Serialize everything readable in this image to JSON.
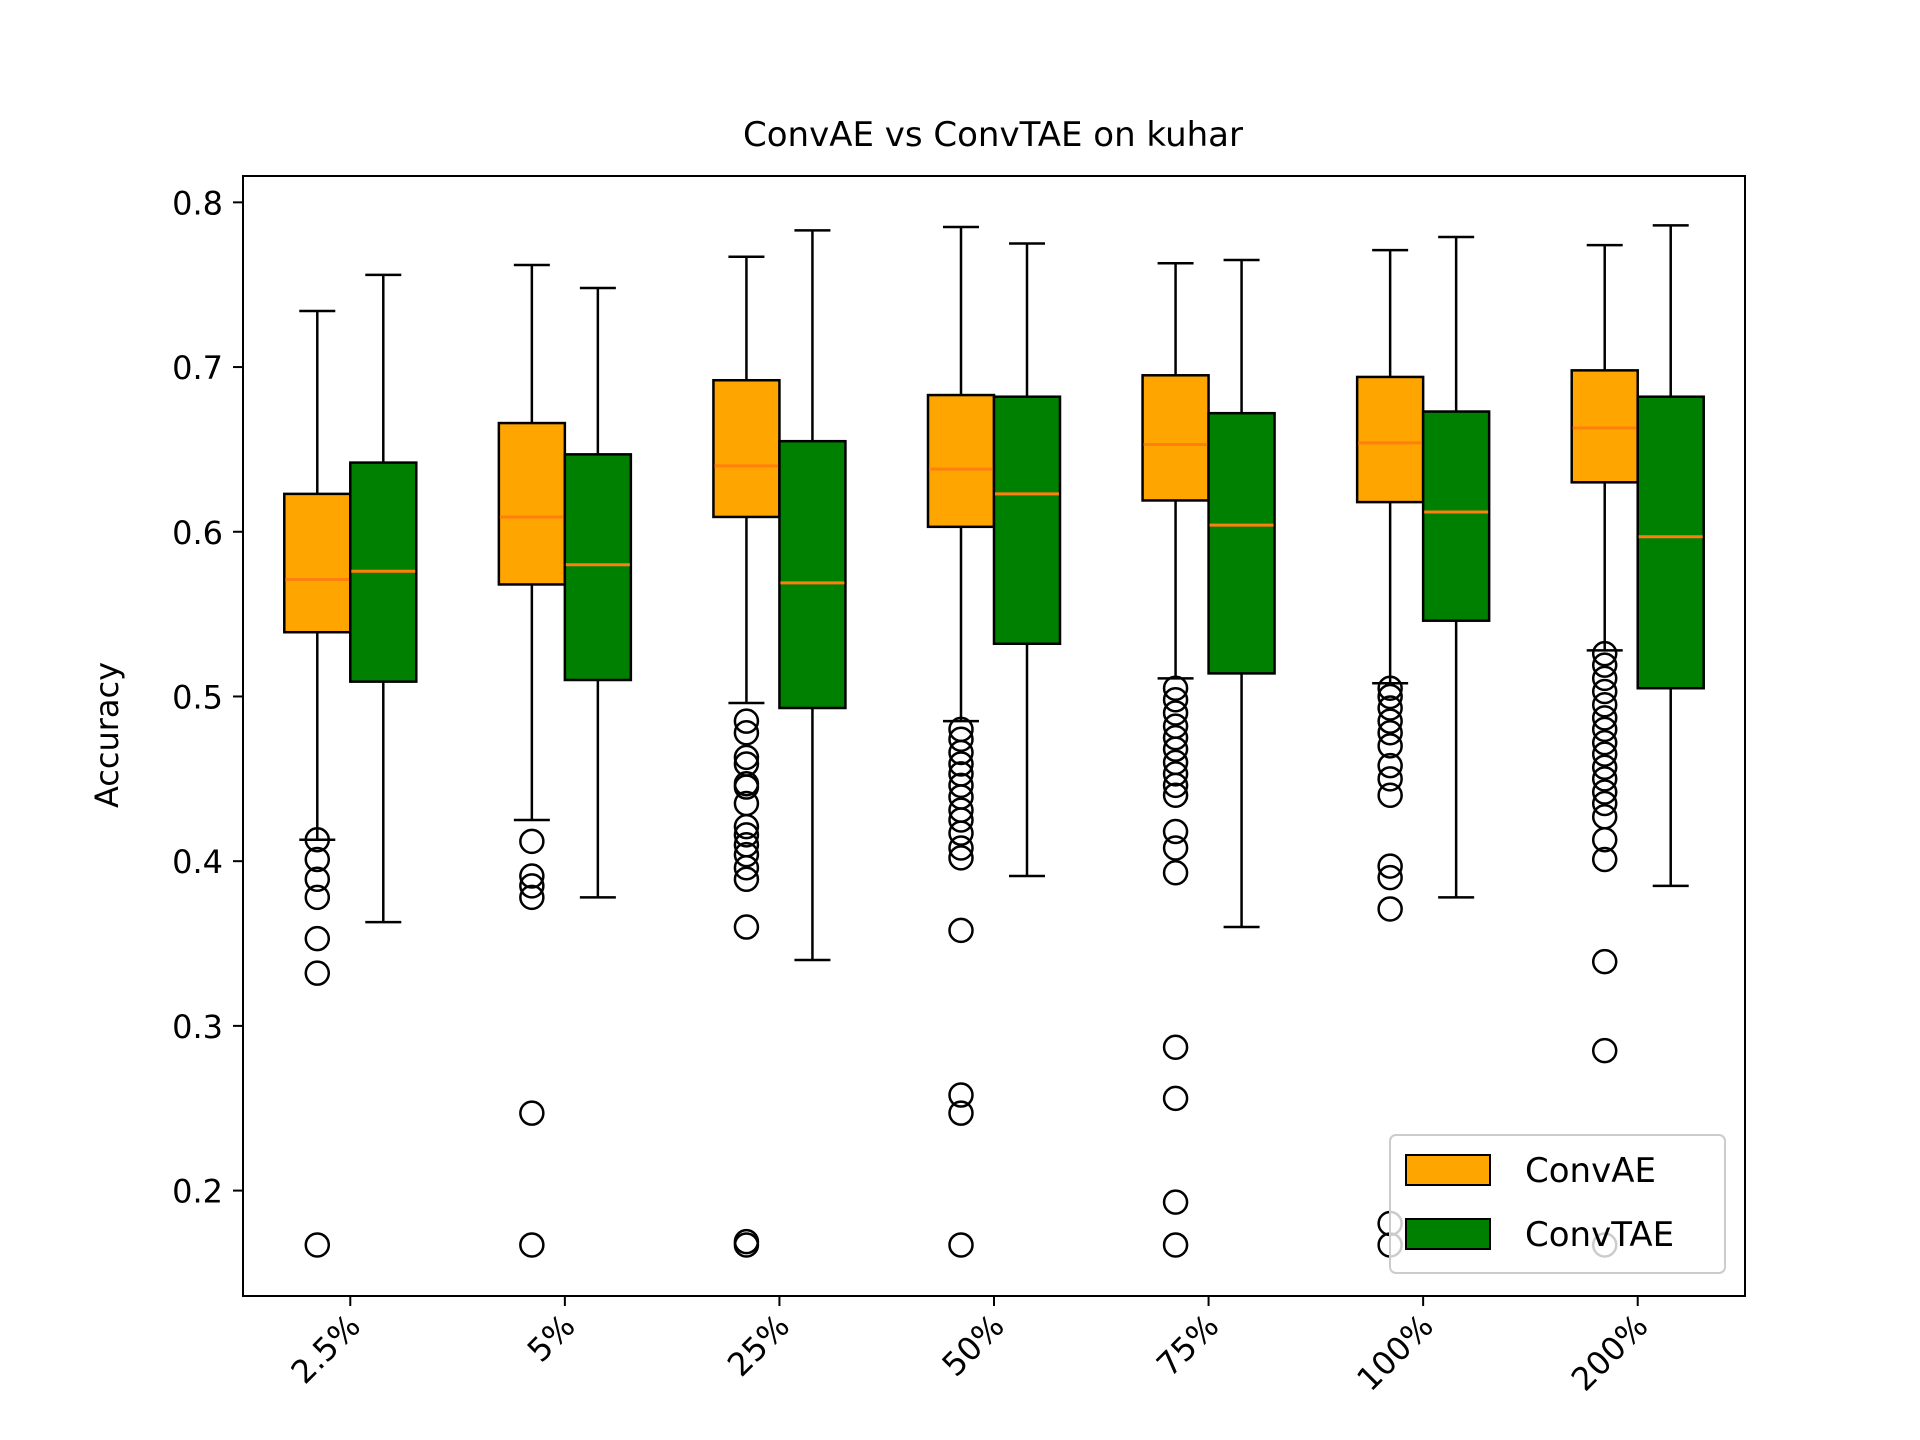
{
  "chart_data": {
    "type": "box",
    "title": "ConvAE vs ConvTAE on kuhar",
    "xlabel": "",
    "ylabel": "Accuracy",
    "ylim": [
      0.136,
      0.816
    ],
    "yticks": [
      0.2,
      0.3,
      0.4,
      0.5,
      0.6,
      0.7,
      0.8
    ],
    "ytick_labels": [
      "0.2",
      "0.3",
      "0.4",
      "0.5",
      "0.6",
      "0.7",
      "0.8"
    ],
    "categories": [
      "2.5%",
      "5%",
      "25%",
      "50%",
      "75%",
      "100%",
      "200%"
    ],
    "grid": false,
    "legend_position": "lower-right",
    "series": [
      {
        "name": "ConvAE",
        "color": "#ffa500",
        "median_color": "#ff7f0e",
        "boxes": [
          {
            "whislo": 0.413,
            "q1": 0.539,
            "med": 0.571,
            "q3": 0.623,
            "whishi": 0.734,
            "fliers": [
              0.413,
              0.401,
              0.389,
              0.378,
              0.353,
              0.332,
              0.167
            ]
          },
          {
            "whislo": 0.425,
            "q1": 0.568,
            "med": 0.609,
            "q3": 0.666,
            "whishi": 0.762,
            "fliers": [
              0.412,
              0.391,
              0.385,
              0.378,
              0.247,
              0.167
            ]
          },
          {
            "whislo": 0.496,
            "q1": 0.609,
            "med": 0.64,
            "q3": 0.692,
            "whishi": 0.767,
            "fliers": [
              0.485,
              0.478,
              0.463,
              0.459,
              0.447,
              0.445,
              0.435,
              0.421,
              0.416,
              0.41,
              0.404,
              0.396,
              0.389,
              0.36,
              0.169,
              0.167
            ]
          },
          {
            "whislo": 0.485,
            "q1": 0.603,
            "med": 0.638,
            "q3": 0.683,
            "whishi": 0.785,
            "fliers": [
              0.48,
              0.474,
              0.466,
              0.459,
              0.453,
              0.446,
              0.439,
              0.431,
              0.425,
              0.417,
              0.408,
              0.402,
              0.358,
              0.258,
              0.247,
              0.167
            ]
          },
          {
            "whislo": 0.511,
            "q1": 0.619,
            "med": 0.653,
            "q3": 0.695,
            "whishi": 0.763,
            "fliers": [
              0.505,
              0.498,
              0.49,
              0.482,
              0.475,
              0.468,
              0.46,
              0.453,
              0.446,
              0.44,
              0.418,
              0.408,
              0.393,
              0.287,
              0.256,
              0.193,
              0.167
            ]
          },
          {
            "whislo": 0.508,
            "q1": 0.618,
            "med": 0.654,
            "q3": 0.694,
            "whishi": 0.771,
            "fliers": [
              0.505,
              0.5,
              0.493,
              0.485,
              0.478,
              0.47,
              0.458,
              0.45,
              0.44,
              0.397,
              0.39,
              0.371,
              0.18,
              0.167
            ]
          },
          {
            "whislo": 0.528,
            "q1": 0.63,
            "med": 0.663,
            "q3": 0.698,
            "whishi": 0.774,
            "fliers": [
              0.526,
              0.519,
              0.511,
              0.503,
              0.495,
              0.487,
              0.48,
              0.472,
              0.465,
              0.457,
              0.45,
              0.442,
              0.435,
              0.427,
              0.413,
              0.401,
              0.339,
              0.285,
              0.167
            ]
          }
        ]
      },
      {
        "name": "ConvTAE",
        "color": "#008000",
        "median_color": "#ff7f0e",
        "boxes": [
          {
            "whislo": 0.363,
            "q1": 0.509,
            "med": 0.576,
            "q3": 0.642,
            "whishi": 0.756,
            "fliers": []
          },
          {
            "whislo": 0.378,
            "q1": 0.51,
            "med": 0.58,
            "q3": 0.647,
            "whishi": 0.748,
            "fliers": []
          },
          {
            "whislo": 0.34,
            "q1": 0.493,
            "med": 0.569,
            "q3": 0.655,
            "whishi": 0.783,
            "fliers": []
          },
          {
            "whislo": 0.391,
            "q1": 0.532,
            "med": 0.623,
            "q3": 0.682,
            "whishi": 0.775,
            "fliers": []
          },
          {
            "whislo": 0.36,
            "q1": 0.514,
            "med": 0.604,
            "q3": 0.672,
            "whishi": 0.765,
            "fliers": []
          },
          {
            "whislo": 0.378,
            "q1": 0.546,
            "med": 0.612,
            "q3": 0.673,
            "whishi": 0.779,
            "fliers": []
          },
          {
            "whislo": 0.385,
            "q1": 0.505,
            "med": 0.597,
            "q3": 0.682,
            "whishi": 0.786,
            "fliers": []
          }
        ]
      }
    ]
  }
}
